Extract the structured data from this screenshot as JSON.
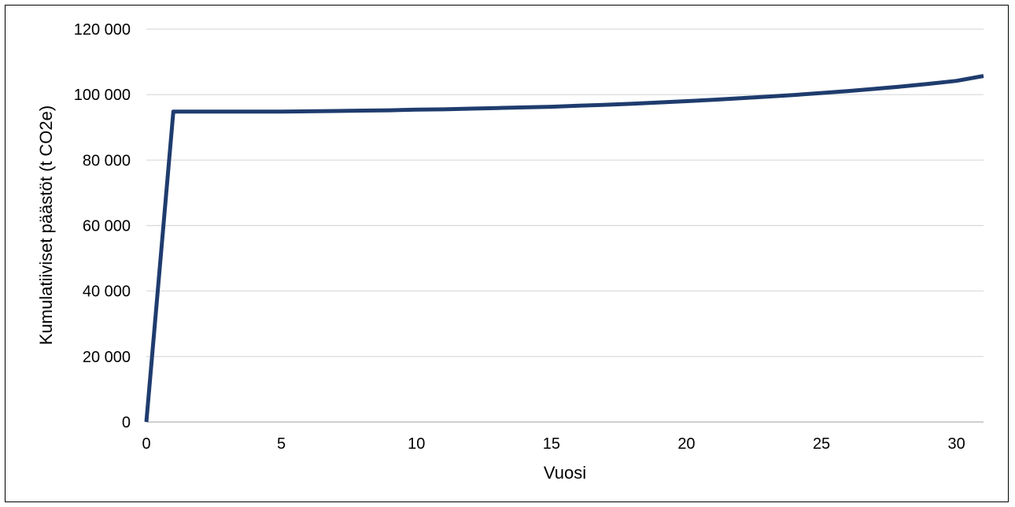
{
  "chart_data": {
    "type": "line",
    "title": "",
    "xlabel": "Vuosi",
    "ylabel": "Kumulatiiviset päästöt (t CO2e)",
    "xlim": [
      0,
      31
    ],
    "ylim": [
      0,
      120000
    ],
    "x_ticks": [
      "0",
      "5",
      "10",
      "15",
      "20",
      "25",
      "30"
    ],
    "y_ticks": [
      "0",
      "20 000",
      "40 000",
      "60 000",
      "80 000",
      "100 000",
      "120 000"
    ],
    "grid": true,
    "legend": "none",
    "colors": {
      "line": "#1f3c6e",
      "grid": "#d9d9d9",
      "axis": "#bfbfbf"
    },
    "series": [
      {
        "x": [
          0,
          1,
          2,
          3,
          4,
          5,
          6,
          7,
          8,
          9,
          10,
          11,
          12,
          13,
          14,
          15,
          16,
          17,
          18,
          19,
          20,
          21,
          22,
          23,
          24,
          25,
          26,
          27,
          28,
          29,
          30,
          31
        ],
        "values": [
          0,
          94800,
          94800,
          94800,
          94800,
          94800,
          94900,
          95000,
          95100,
          95200,
          95400,
          95500,
          95700,
          95900,
          96100,
          96300,
          96600,
          96900,
          97200,
          97600,
          98000,
          98400,
          98900,
          99400,
          99900,
          100500,
          101100,
          101800,
          102500,
          103300,
          104200,
          105700
        ]
      }
    ]
  }
}
